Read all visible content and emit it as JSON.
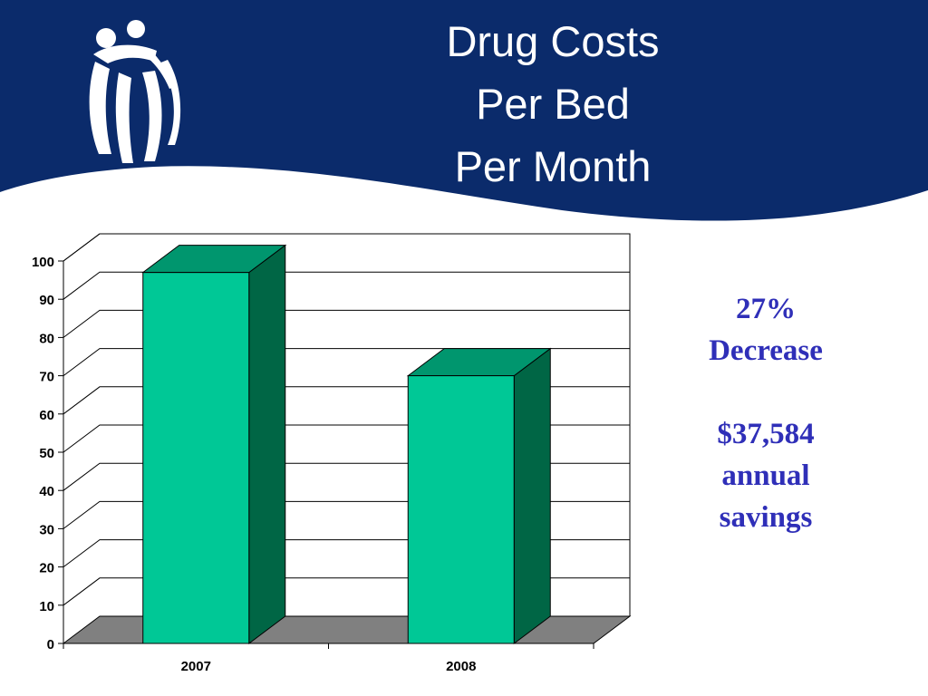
{
  "slide": {
    "title_lines": [
      "Drug Costs",
      "Per Bed",
      "Per Month"
    ],
    "banner_color": "#0b2b6b",
    "logo_icon": "family-figures-logo-icon"
  },
  "callout": {
    "line1": "27%",
    "line2": "Decrease",
    "line3": "$37,584",
    "line4": "annual",
    "line5": "savings",
    "color": "#2f2fb8"
  },
  "chart_data": {
    "type": "bar",
    "style": "3d",
    "categories": [
      "2007",
      "2008"
    ],
    "values": [
      97,
      70
    ],
    "ylim": [
      0,
      100
    ],
    "yticks": [
      0,
      10,
      20,
      30,
      40,
      50,
      60,
      70,
      80,
      90,
      100
    ],
    "grid": true,
    "legend": "none",
    "bar_color": "#00c896",
    "bar_side_color": "#006645",
    "bar_top_color": "#00966e",
    "floor_color": "#808080"
  }
}
